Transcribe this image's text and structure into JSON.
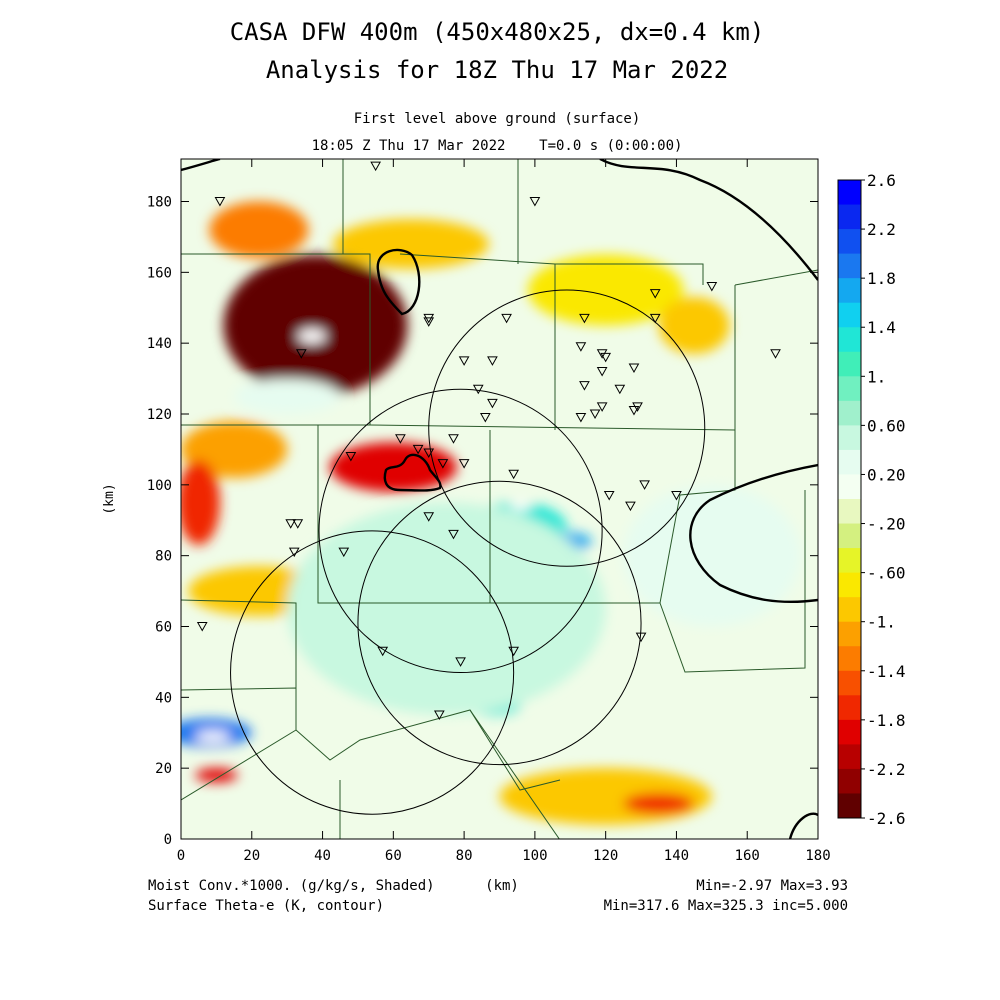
{
  "titles": {
    "line1": "CASA DFW 400m (450x480x25, dx=0.4 km)",
    "line2": "Analysis for 18Z Thu 17 Mar 2022",
    "subtitle1": "First level above ground (surface)",
    "subtitle2": "18:05 Z Thu 17 Mar 2022    T=0.0 s (0:00:00)"
  },
  "footer": {
    "left1": "Moist Conv.*1000. (g/kg/s, Shaded)",
    "left2": "Surface Theta-e (K, contour)",
    "unit": "(km)",
    "right1": "Min=-2.97 Max=3.93",
    "right2": "Min=317.6 Max=325.3 inc=5.000"
  },
  "chart_data": {
    "type": "heatmap",
    "xlabel": "(km)",
    "ylabel": "(km)",
    "xlim": [
      0,
      180
    ],
    "ylim": [
      0,
      192
    ],
    "x_ticks": [
      "0",
      "20",
      "40",
      "60",
      "80",
      "100",
      "120",
      "140",
      "160",
      "180"
    ],
    "y_ticks": [
      "0",
      "20",
      "40",
      "60",
      "80",
      "100",
      "120",
      "140",
      "160",
      "180"
    ],
    "colorbar": {
      "labels": [
        "2.6",
        "2.2",
        "1.8",
        "1.4",
        "1.",
        "0.60",
        "0.20",
        "-.20",
        "-.60",
        "-1.",
        "-1.4",
        "-1.8",
        "-2.2",
        "-2.6"
      ],
      "colors": [
        "#0000ff",
        "#0a28f0",
        "#1050f0",
        "#1a78f0",
        "#14a8f0",
        "#10d0f0",
        "#20e6d6",
        "#40eeb8",
        "#70f0c0",
        "#a0f0cc",
        "#c8f8e0",
        "#e6fcf0",
        "#f4fff2",
        "#e8f8c0",
        "#d4f080",
        "#e6f428",
        "#fae800",
        "#fcc800",
        "#fca000",
        "#fc7c00",
        "#f85000",
        "#f02800",
        "#e00000",
        "#b80000",
        "#900000",
        "#600000"
      ]
    },
    "radar_circles": [
      {
        "cx": 54,
        "cy": 47,
        "r": 40
      },
      {
        "cx": 79,
        "cy": 87,
        "r": 40
      },
      {
        "cx": 90,
        "cy": 61,
        "r": 40
      },
      {
        "cx": 109,
        "cy": 116,
        "r": 39
      }
    ],
    "stations": [
      [
        11,
        180
      ],
      [
        55,
        190
      ],
      [
        100,
        180
      ],
      [
        34,
        137
      ],
      [
        70,
        146
      ],
      [
        70,
        147
      ],
      [
        92,
        147
      ],
      [
        80,
        135
      ],
      [
        88,
        135
      ],
      [
        84,
        127
      ],
      [
        88,
        123
      ],
      [
        86,
        119
      ],
      [
        114,
        147
      ],
      [
        113,
        139
      ],
      [
        119,
        137
      ],
      [
        120,
        136
      ],
      [
        119,
        132
      ],
      [
        114,
        128
      ],
      [
        113,
        119
      ],
      [
        117,
        120
      ],
      [
        119,
        122
      ],
      [
        124,
        127
      ],
      [
        128,
        121
      ],
      [
        129,
        122
      ],
      [
        128,
        133
      ],
      [
        134,
        154
      ],
      [
        134,
        147
      ],
      [
        150,
        156
      ],
      [
        168,
        137
      ],
      [
        62,
        113
      ],
      [
        77,
        113
      ],
      [
        67,
        110
      ],
      [
        70,
        109
      ],
      [
        74,
        106
      ],
      [
        80,
        106
      ],
      [
        48,
        108
      ],
      [
        94,
        103
      ],
      [
        121,
        97
      ],
      [
        131,
        100
      ],
      [
        127,
        94
      ],
      [
        140,
        97
      ],
      [
        70,
        91
      ],
      [
        77,
        86
      ],
      [
        31,
        89
      ],
      [
        33,
        89
      ],
      [
        32,
        81
      ],
      [
        46,
        81
      ],
      [
        6,
        60
      ],
      [
        57,
        53
      ],
      [
        79,
        50
      ],
      [
        94,
        53
      ],
      [
        130,
        57
      ],
      [
        73,
        35
      ]
    ],
    "anomalies": [
      {
        "cx": 38,
        "cy": 145,
        "rx": 26,
        "ry": 20,
        "value": -2.4
      },
      {
        "cx": 40,
        "cy": 150,
        "rx": 16,
        "ry": 12,
        "value": -2.7
      },
      {
        "cx": 37,
        "cy": 142,
        "rx": 4,
        "ry": 2,
        "value": -3.0
      },
      {
        "cx": 22,
        "cy": 172,
        "rx": 14,
        "ry": 8,
        "value": -1.3
      },
      {
        "cx": 65,
        "cy": 168,
        "rx": 22,
        "ry": 7,
        "value": -0.9
      },
      {
        "cx": 60,
        "cy": 105,
        "rx": 18,
        "ry": 7,
        "value": -1.9
      },
      {
        "cx": 15,
        "cy": 110,
        "rx": 15,
        "ry": 8,
        "value": -1.2
      },
      {
        "cx": 5,
        "cy": 95,
        "rx": 6,
        "ry": 12,
        "value": -1.6
      },
      {
        "cx": 22,
        "cy": 70,
        "rx": 20,
        "ry": 7,
        "value": -0.8
      },
      {
        "cx": 120,
        "cy": 155,
        "rx": 22,
        "ry": 10,
        "value": -0.7
      },
      {
        "cx": 145,
        "cy": 145,
        "rx": 10,
        "ry": 8,
        "value": -0.8
      },
      {
        "cx": 120,
        "cy": 12,
        "rx": 30,
        "ry": 8,
        "value": -0.9
      },
      {
        "cx": 135,
        "cy": 10,
        "rx": 10,
        "ry": 3,
        "value": -1.6
      },
      {
        "cx": 95,
        "cy": 88,
        "rx": 14,
        "ry": 7,
        "value": 1.4
      },
      {
        "cx": 96,
        "cy": 94,
        "rx": 3,
        "ry": 1.2,
        "value": 3.0
      },
      {
        "cx": 110,
        "cy": 84,
        "rx": 6,
        "ry": 2.5,
        "value": 1.8
      },
      {
        "cx": 88,
        "cy": 38,
        "rx": 8,
        "ry": 3,
        "value": 1.4
      },
      {
        "cx": 8,
        "cy": 30,
        "rx": 12,
        "ry": 4,
        "value": 1.9
      },
      {
        "cx": 9,
        "cy": 29,
        "rx": 5,
        "ry": 1.5,
        "value": 3.0
      },
      {
        "cx": 75,
        "cy": 65,
        "rx": 45,
        "ry": 30,
        "value": 0.5
      },
      {
        "cx": 150,
        "cy": 80,
        "rx": 25,
        "ry": 20,
        "value": 0.3
      },
      {
        "cx": 30,
        "cy": 125,
        "rx": 15,
        "ry": 5,
        "value": 0.4
      },
      {
        "cx": 10,
        "cy": 18,
        "rx": 6,
        "ry": 2,
        "value": -2.0
      }
    ]
  }
}
